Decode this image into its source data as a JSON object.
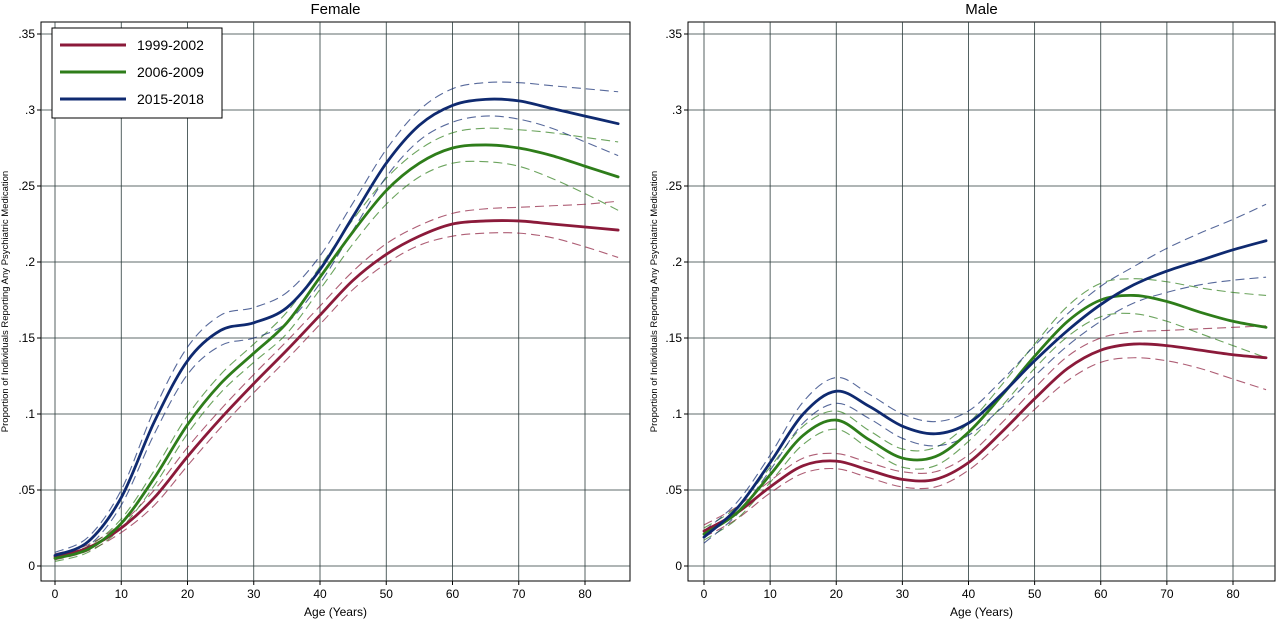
{
  "chart_data": [
    {
      "type": "line",
      "title": "Female",
      "xlabel": "Age (Years)",
      "ylabel": "Proportion of Individuals Reporting Any Psychiatric Medication",
      "xlim": [
        0,
        85
      ],
      "ylim": [
        0,
        0.35
      ],
      "x_ticks": [
        0,
        10,
        20,
        30,
        40,
        50,
        60,
        70,
        80
      ],
      "x_tick_labels": [
        "0",
        "10",
        "20",
        "30",
        "40",
        "50",
        "60",
        "70",
        "80"
      ],
      "y_ticks": [
        0,
        0.05,
        0.1,
        0.15,
        0.2,
        0.25,
        0.3,
        0.35
      ],
      "y_tick_labels": [
        "0",
        ".05",
        ".1",
        ".15",
        ".2",
        ".25",
        ".3",
        ".35"
      ],
      "grid": true,
      "legend": "top-left",
      "x": [
        0,
        5,
        10,
        15,
        20,
        25,
        30,
        35,
        40,
        45,
        50,
        55,
        60,
        65,
        70,
        75,
        80,
        85
      ],
      "series": [
        {
          "name": "1999-2002",
          "color": "#8b1a3a",
          "values": [
            0.006,
            0.012,
            0.025,
            0.045,
            0.072,
            0.097,
            0.12,
            0.142,
            0.165,
            0.188,
            0.205,
            0.217,
            0.225,
            0.227,
            0.227,
            0.225,
            0.223,
            0.221
          ],
          "ci_lower": [
            0.004,
            0.01,
            0.022,
            0.04,
            0.066,
            0.091,
            0.114,
            0.136,
            0.159,
            0.182,
            0.199,
            0.211,
            0.217,
            0.219,
            0.219,
            0.216,
            0.21,
            0.203
          ],
          "ci_upper": [
            0.008,
            0.014,
            0.028,
            0.05,
            0.078,
            0.103,
            0.126,
            0.148,
            0.171,
            0.194,
            0.212,
            0.224,
            0.232,
            0.235,
            0.236,
            0.237,
            0.238,
            0.24
          ]
        },
        {
          "name": "2006-2009",
          "color": "#2e7d1a",
          "values": [
            0.005,
            0.011,
            0.028,
            0.058,
            0.093,
            0.12,
            0.14,
            0.16,
            0.19,
            0.22,
            0.247,
            0.265,
            0.275,
            0.277,
            0.275,
            0.27,
            0.263,
            0.256
          ],
          "ci_lower": [
            0.003,
            0.009,
            0.025,
            0.053,
            0.087,
            0.114,
            0.134,
            0.153,
            0.182,
            0.212,
            0.238,
            0.256,
            0.265,
            0.266,
            0.263,
            0.255,
            0.245,
            0.234
          ],
          "ci_upper": [
            0.007,
            0.013,
            0.031,
            0.063,
            0.099,
            0.126,
            0.146,
            0.167,
            0.197,
            0.228,
            0.255,
            0.274,
            0.285,
            0.288,
            0.287,
            0.285,
            0.282,
            0.279
          ]
        },
        {
          "name": "2015-2018",
          "color": "#0f2a70",
          "values": [
            0.007,
            0.016,
            0.045,
            0.095,
            0.135,
            0.155,
            0.16,
            0.17,
            0.195,
            0.23,
            0.265,
            0.29,
            0.303,
            0.307,
            0.306,
            0.301,
            0.296,
            0.291
          ],
          "ci_lower": [
            0.005,
            0.013,
            0.04,
            0.087,
            0.126,
            0.145,
            0.15,
            0.16,
            0.186,
            0.221,
            0.256,
            0.28,
            0.292,
            0.296,
            0.294,
            0.288,
            0.279,
            0.27
          ],
          "ci_upper": [
            0.009,
            0.019,
            0.05,
            0.103,
            0.144,
            0.165,
            0.17,
            0.18,
            0.204,
            0.239,
            0.274,
            0.3,
            0.314,
            0.318,
            0.318,
            0.316,
            0.314,
            0.312
          ]
        }
      ]
    },
    {
      "type": "line",
      "title": "Male",
      "xlabel": "Age (Years)",
      "ylabel": "Proportion of Individuals Reporting Any Psychiatric Medication",
      "xlim": [
        0,
        85
      ],
      "ylim": [
        0,
        0.35
      ],
      "x_ticks": [
        0,
        10,
        20,
        30,
        40,
        50,
        60,
        70,
        80
      ],
      "x_tick_labels": [
        "0",
        "10",
        "20",
        "30",
        "40",
        "50",
        "60",
        "70",
        "80"
      ],
      "y_ticks": [
        0,
        0.05,
        0.1,
        0.15,
        0.2,
        0.25,
        0.3,
        0.35
      ],
      "y_tick_labels": [
        "0",
        ".05",
        ".1",
        ".15",
        ".2",
        ".25",
        ".3",
        ".35"
      ],
      "grid": true,
      "x": [
        0,
        5,
        10,
        15,
        20,
        25,
        30,
        35,
        40,
        45,
        50,
        55,
        60,
        65,
        70,
        75,
        80,
        85
      ],
      "series": [
        {
          "name": "1999-2002",
          "color": "#8b1a3a",
          "values": [
            0.023,
            0.035,
            0.052,
            0.066,
            0.069,
            0.063,
            0.057,
            0.057,
            0.068,
            0.088,
            0.11,
            0.13,
            0.142,
            0.146,
            0.145,
            0.142,
            0.139,
            0.137
          ],
          "ci_lower": [
            0.019,
            0.031,
            0.048,
            0.061,
            0.064,
            0.058,
            0.052,
            0.052,
            0.063,
            0.082,
            0.103,
            0.122,
            0.134,
            0.137,
            0.135,
            0.13,
            0.123,
            0.116
          ],
          "ci_upper": [
            0.027,
            0.039,
            0.056,
            0.071,
            0.074,
            0.068,
            0.062,
            0.062,
            0.073,
            0.094,
            0.117,
            0.138,
            0.15,
            0.154,
            0.155,
            0.156,
            0.157,
            0.158
          ]
        },
        {
          "name": "2006-2009",
          "color": "#2e7d1a",
          "values": [
            0.021,
            0.035,
            0.06,
            0.086,
            0.096,
            0.083,
            0.071,
            0.072,
            0.088,
            0.112,
            0.138,
            0.161,
            0.175,
            0.178,
            0.174,
            0.167,
            0.161,
            0.157
          ],
          "ci_lower": [
            0.017,
            0.031,
            0.055,
            0.08,
            0.09,
            0.077,
            0.065,
            0.066,
            0.082,
            0.105,
            0.13,
            0.151,
            0.164,
            0.166,
            0.161,
            0.153,
            0.145,
            0.137
          ],
          "ci_upper": [
            0.025,
            0.039,
            0.065,
            0.092,
            0.102,
            0.089,
            0.077,
            0.078,
            0.094,
            0.119,
            0.146,
            0.171,
            0.186,
            0.189,
            0.187,
            0.183,
            0.18,
            0.178
          ]
        },
        {
          "name": "2015-2018",
          "color": "#0f2a70",
          "values": [
            0.019,
            0.038,
            0.068,
            0.1,
            0.115,
            0.105,
            0.092,
            0.087,
            0.094,
            0.113,
            0.135,
            0.155,
            0.172,
            0.185,
            0.194,
            0.201,
            0.208,
            0.214
          ],
          "ci_lower": [
            0.015,
            0.034,
            0.063,
            0.094,
            0.107,
            0.097,
            0.084,
            0.079,
            0.086,
            0.104,
            0.125,
            0.145,
            0.161,
            0.173,
            0.18,
            0.185,
            0.188,
            0.19
          ],
          "ci_upper": [
            0.023,
            0.042,
            0.073,
            0.108,
            0.124,
            0.113,
            0.1,
            0.095,
            0.102,
            0.122,
            0.145,
            0.166,
            0.184,
            0.197,
            0.209,
            0.219,
            0.228,
            0.238
          ]
        }
      ]
    }
  ]
}
